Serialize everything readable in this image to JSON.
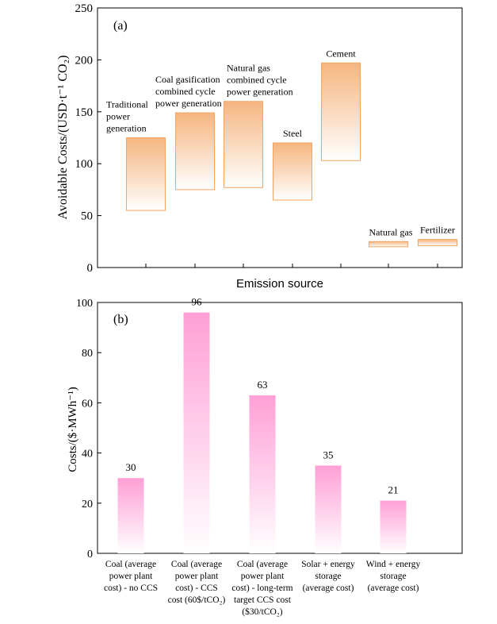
{
  "chart_data": [
    {
      "type": "bar",
      "panel_label": "(a)",
      "xlabel": "Emission source",
      "ylabel": "Avoidable Costs/(USD·t⁻¹ CO₂)",
      "ylim": [
        0,
        250
      ],
      "yticks": [
        0,
        50,
        100,
        150,
        200,
        250
      ],
      "grid": false,
      "bar_color": "#f4a460",
      "categories": [
        "Traditional power generation",
        "Coal gasification combined cycle power generation",
        "Natural gas combined cycle power generation",
        "Steel",
        "Cement",
        "Natural gas",
        "Fertilizer"
      ],
      "label_lines": [
        [
          "Traditional",
          "power",
          "generation"
        ],
        [
          "Coal gasification",
          "combined cycle",
          "power generation"
        ],
        [
          "Natural gas",
          "combined cycle",
          "power generation"
        ],
        [
          "Steel"
        ],
        [
          "Cement"
        ],
        [
          "Natural gas"
        ],
        [
          "Fertilizer"
        ]
      ],
      "low": [
        55,
        75,
        77,
        65,
        103,
        20,
        21
      ],
      "high": [
        125,
        149,
        160,
        120,
        197,
        25,
        27
      ]
    },
    {
      "type": "bar",
      "panel_label": "(b)",
      "xlabel": "",
      "ylabel": "Costs/($·MWh⁻¹)",
      "ylim": [
        0,
        100
      ],
      "yticks": [
        0,
        20,
        40,
        60,
        80,
        100
      ],
      "grid": false,
      "bar_color": "#ff8ccc",
      "categories": [
        "Coal (average power plant cost) - no CCS",
        "Coal (average power plant cost) - CCS cost (60$/tCO₂)",
        "Coal (average power plant cost) - long-term target CCS cost ($30/tCO₂)",
        "Solar + energy storage (average cost)",
        "Wind + energy storage (average cost)"
      ],
      "label_lines": [
        [
          "Coal (average",
          "power plant",
          "cost) - no CCS"
        ],
        [
          "Coal (average",
          "power plant",
          "cost) - CCS",
          "cost (60$/tCO₂)"
        ],
        [
          "Coal (average",
          "power plant",
          "cost) - long-term",
          "target CCS cost",
          "($30/tCO₂)"
        ],
        [
          "Solar + energy",
          "storage",
          "(average cost)"
        ],
        [
          "Wind + energy",
          "storage",
          "(average cost)"
        ]
      ],
      "values": [
        30,
        96,
        63,
        35,
        21
      ]
    }
  ]
}
